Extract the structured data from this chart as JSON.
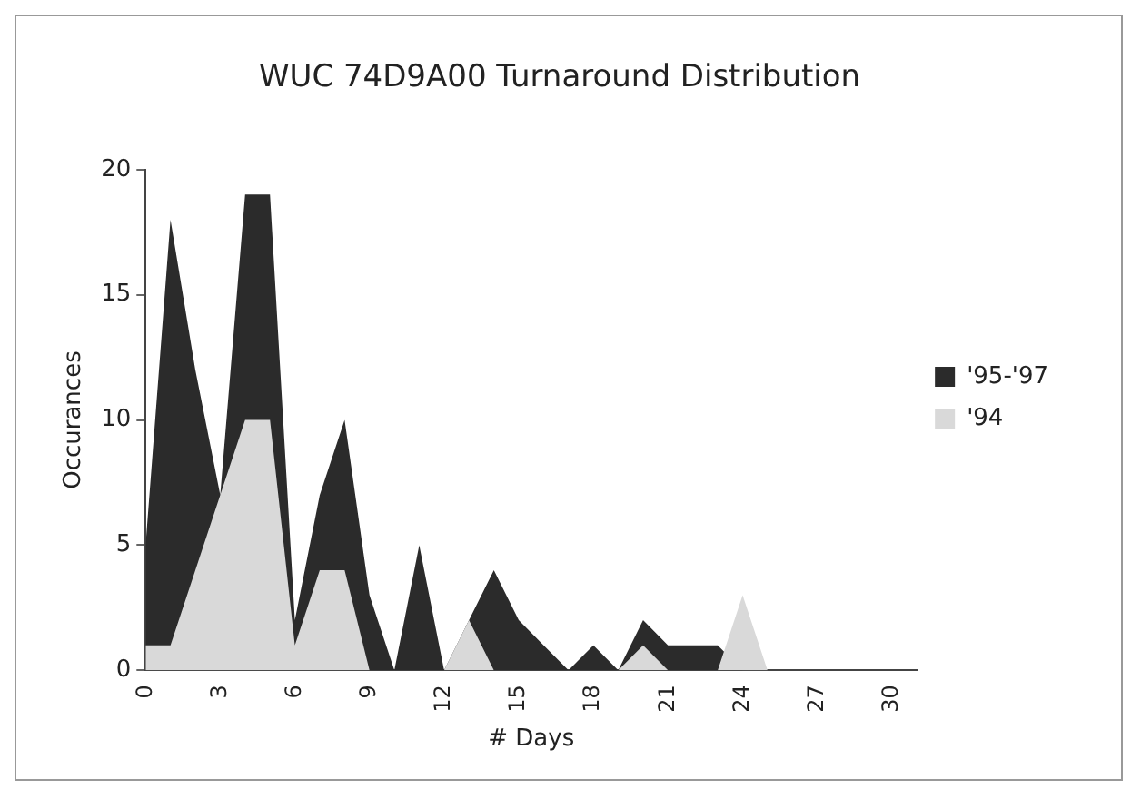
{
  "chart_data": {
    "type": "area",
    "title": "WUC 74D9A00 Turnaround Distribution",
    "xlabel": "# Days",
    "ylabel": "Occurances",
    "categories": [
      "0",
      null,
      null,
      "3",
      null,
      null,
      "6",
      null,
      null,
      "9",
      null,
      null,
      "12",
      null,
      null,
      "15",
      null,
      null,
      "18",
      null,
      null,
      "21",
      null,
      null,
      "24",
      null,
      null,
      "27",
      null,
      null,
      "30",
      null
    ],
    "series": [
      {
        "name": "'95-'97",
        "color": "#2b2b2b",
        "values": [
          5,
          18,
          12,
          7,
          19,
          19,
          2,
          7,
          10,
          3,
          0,
          5,
          0,
          2,
          4,
          2,
          1,
          0,
          1,
          0,
          2,
          1,
          1,
          1,
          0,
          0,
          0,
          0,
          0,
          0,
          0,
          0
        ]
      },
      {
        "name": "'94",
        "color": "#d9d9d9",
        "values": [
          1,
          1,
          4,
          7,
          10,
          10,
          1,
          4,
          4,
          0,
          0,
          0,
          0,
          2,
          0,
          0,
          0,
          0,
          0,
          0,
          1,
          0,
          0,
          0,
          3,
          0,
          0,
          0,
          0,
          0,
          0,
          0
        ]
      }
    ],
    "ylim": [
      0,
      20
    ],
    "yticks": [
      0,
      5,
      10,
      15,
      20
    ],
    "grid": false,
    "legend": "right"
  }
}
